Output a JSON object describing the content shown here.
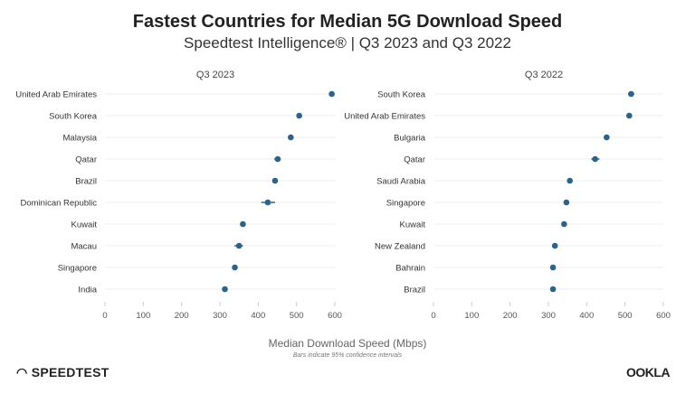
{
  "title": "Fastest Countries for Median 5G Download Speed",
  "subtitle": "Speedtest Intelligence® | Q3 2023 and Q3 2022",
  "xlabel": "Median Download Speed (Mbps)",
  "note": "Bars indicate 95% confidence intervals",
  "logos": {
    "left": "SPEEDTEST",
    "right": "OOKLA"
  },
  "colors": {
    "point": "#2e6286",
    "grid": "#ececec",
    "tick_text": "#555555",
    "label_text": "#333333"
  },
  "chart_data": [
    {
      "type": "scatter",
      "title": "Q3 2023",
      "xlim": [
        0,
        600
      ],
      "xticks": [
        0,
        100,
        200,
        300,
        400,
        500,
        600
      ],
      "grid": true,
      "categories": [
        "United Arab Emirates",
        "South Korea",
        "Malaysia",
        "Qatar",
        "Brazil",
        "Dominican Republic",
        "Kuwait",
        "Macau",
        "Singapore",
        "India"
      ],
      "values": [
        592,
        507,
        485,
        451,
        444,
        425,
        360,
        350,
        339,
        313
      ],
      "ci_low": [
        589,
        504,
        482,
        442,
        441,
        408,
        357,
        338,
        336,
        310
      ],
      "ci_high": [
        595,
        510,
        488,
        459,
        447,
        444,
        363,
        360,
        342,
        316
      ]
    },
    {
      "type": "scatter",
      "title": "Q3 2022",
      "xlim": [
        0,
        600
      ],
      "xticks": [
        0,
        100,
        200,
        300,
        400,
        500,
        600
      ],
      "grid": true,
      "categories": [
        "South Korea",
        "United Arab Emirates",
        "Bulgaria",
        "Qatar",
        "Saudi Arabia",
        "Singapore",
        "Kuwait",
        "New Zealand",
        "Bahrain",
        "Brazil"
      ],
      "values": [
        516,
        511,
        452,
        422,
        356,
        347,
        341,
        317,
        312,
        312
      ],
      "ci_low": [
        508,
        508,
        449,
        412,
        353,
        343,
        338,
        314,
        309,
        309
      ],
      "ci_high": [
        524,
        514,
        455,
        433,
        359,
        352,
        344,
        320,
        315,
        315
      ]
    }
  ]
}
